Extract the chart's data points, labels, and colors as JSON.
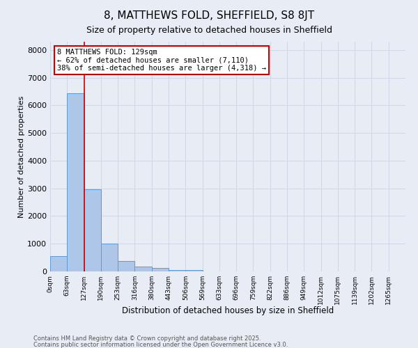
{
  "title1": "8, MATTHEWS FOLD, SHEFFIELD, S8 8JT",
  "title2": "Size of property relative to detached houses in Sheffield",
  "xlabel": "Distribution of detached houses by size in Sheffield",
  "ylabel": "Number of detached properties",
  "bar_color": "#aec6e8",
  "bar_edge_color": "#5b9bd5",
  "bar_bins": [
    "0sqm",
    "63sqm",
    "127sqm",
    "190sqm",
    "253sqm",
    "316sqm",
    "380sqm",
    "443sqm",
    "506sqm",
    "569sqm",
    "633sqm",
    "696sqm",
    "759sqm",
    "822sqm",
    "886sqm",
    "949sqm",
    "1012sqm",
    "1075sqm",
    "1139sqm",
    "1202sqm",
    "1265sqm"
  ],
  "bar_values": [
    560,
    6450,
    2980,
    1000,
    370,
    180,
    120,
    60,
    50,
    0,
    0,
    0,
    0,
    0,
    0,
    0,
    0,
    0,
    0,
    0,
    0
  ],
  "bin_width": 63,
  "vline_x": 127,
  "vline_color": "#cc0000",
  "annotation_line1": "8 MATTHEWS FOLD: 129sqm",
  "annotation_line2": "← 62% of detached houses are smaller (7,110)",
  "annotation_line3": "38% of semi-detached houses are larger (4,318) →",
  "annotation_box_color": "#ffffff",
  "annotation_edge_color": "#cc0000",
  "ylim": [
    0,
    8300
  ],
  "yticks": [
    0,
    1000,
    2000,
    3000,
    4000,
    5000,
    6000,
    7000,
    8000
  ],
  "grid_color": "#d0d8e8",
  "bg_color": "#e8edf5",
  "footnote1": "Contains HM Land Registry data © Crown copyright and database right 2025.",
  "footnote2": "Contains public sector information licensed under the Open Government Licence v3.0."
}
